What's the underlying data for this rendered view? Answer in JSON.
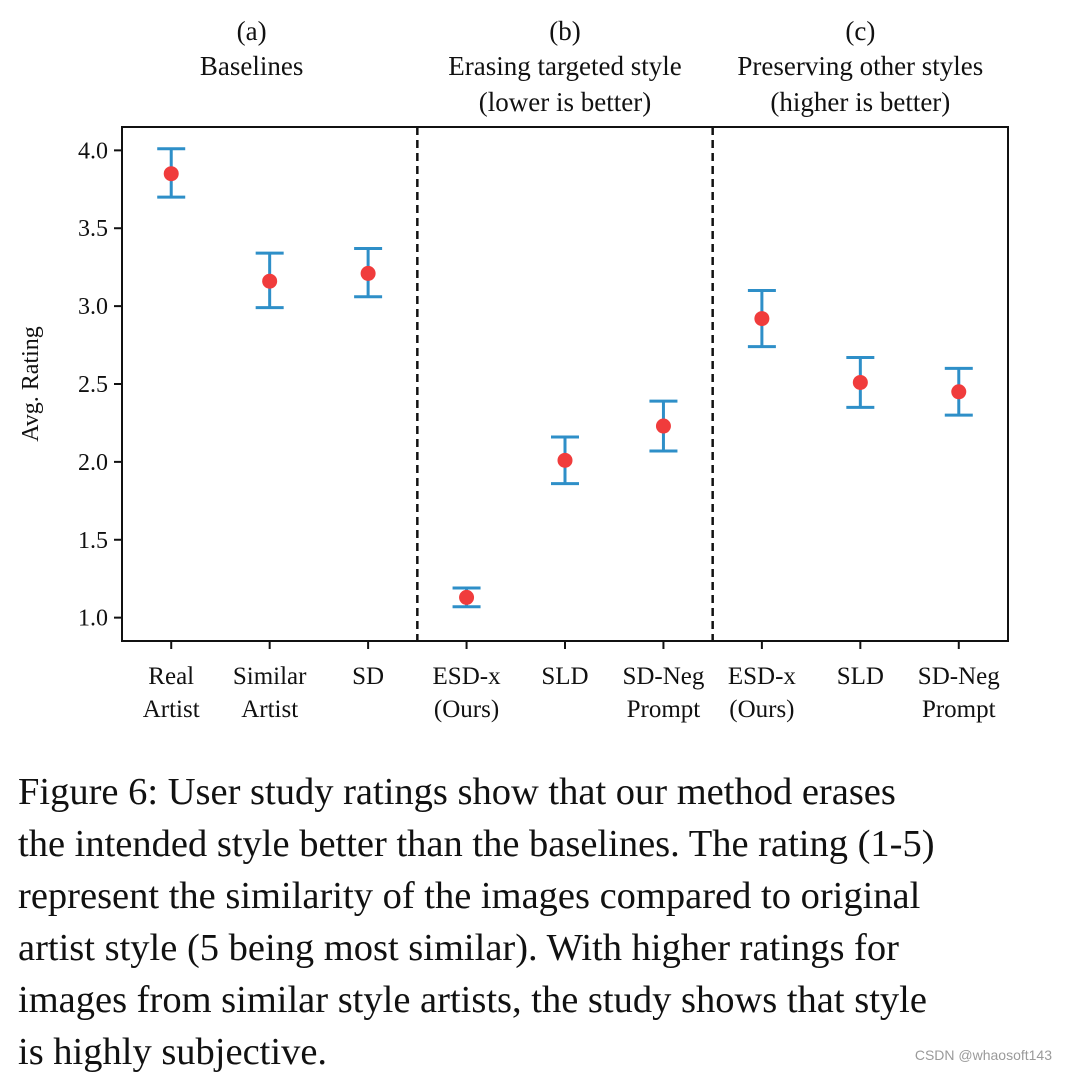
{
  "chart_data": {
    "type": "scatter",
    "title": "",
    "xlabel": "",
    "ylabel": "Avg. Rating",
    "ylim": [
      0.85,
      4.15
    ],
    "yticks": [
      1.0,
      1.5,
      2.0,
      2.5,
      3.0,
      3.5,
      4.0
    ],
    "ytick_labels": [
      "1.0",
      "1.5",
      "2.0",
      "2.5",
      "3.0",
      "3.5",
      "4.0"
    ],
    "grid": false,
    "legend": "none",
    "marker_color": "#f03c3c",
    "errorbar_color": "#2e8fc8",
    "panels": [
      {
        "letter": "(a)",
        "title_lines": [
          "Baselines"
        ]
      },
      {
        "letter": "(b)",
        "title_lines": [
          "Erasing targeted style",
          "(lower is better)"
        ]
      },
      {
        "letter": "(c)",
        "title_lines": [
          "Preserving other styles",
          "(higher is better)"
        ]
      }
    ],
    "points": [
      {
        "panel": 0,
        "label_lines": [
          "Real",
          "Artist"
        ],
        "mean": 3.85,
        "lower": 3.7,
        "upper": 4.01
      },
      {
        "panel": 0,
        "label_lines": [
          "Similar",
          "Artist"
        ],
        "mean": 3.16,
        "lower": 2.99,
        "upper": 3.34
      },
      {
        "panel": 0,
        "label_lines": [
          "SD"
        ],
        "mean": 3.21,
        "lower": 3.06,
        "upper": 3.37
      },
      {
        "panel": 1,
        "label_lines": [
          "ESD-x",
          "(Ours)"
        ],
        "mean": 1.13,
        "lower": 1.07,
        "upper": 1.19
      },
      {
        "panel": 1,
        "label_lines": [
          "SLD"
        ],
        "mean": 2.01,
        "lower": 1.86,
        "upper": 2.16
      },
      {
        "panel": 1,
        "label_lines": [
          "SD-Neg",
          "Prompt"
        ],
        "mean": 2.23,
        "lower": 2.07,
        "upper": 2.39
      },
      {
        "panel": 2,
        "label_lines": [
          "ESD-x",
          "(Ours)"
        ],
        "mean": 2.92,
        "lower": 2.74,
        "upper": 3.1
      },
      {
        "panel": 2,
        "label_lines": [
          "SLD"
        ],
        "mean": 2.51,
        "lower": 2.35,
        "upper": 2.67
      },
      {
        "panel": 2,
        "label_lines": [
          "SD-Neg",
          "Prompt"
        ],
        "mean": 2.45,
        "lower": 2.3,
        "upper": 2.6
      }
    ]
  },
  "caption": {
    "lines": [
      "Figure 6: User study ratings show that our method erases",
      "the intended style better than the baselines. The rating (1-5)",
      "represent the similarity of the images compared to original",
      "artist style (5 being most similar).  With higher ratings for",
      "images from similar style artists, the study shows that style",
      "is highly subjective."
    ]
  },
  "watermark": "CSDN @whaosoft143"
}
